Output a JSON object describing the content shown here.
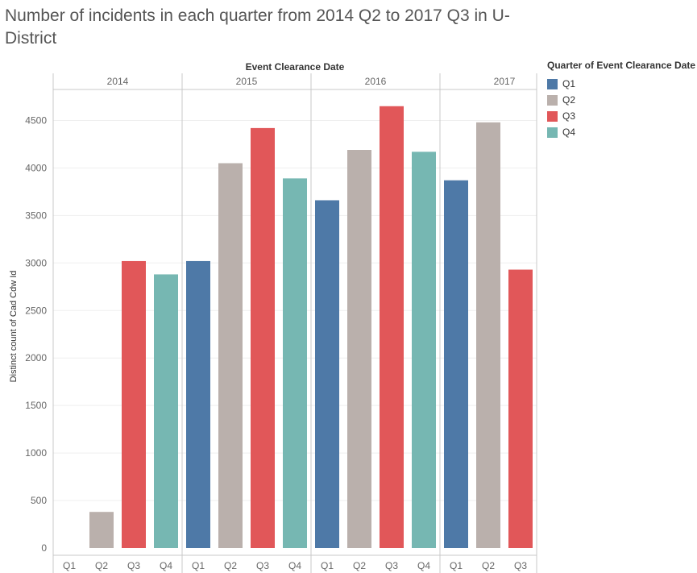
{
  "title": "Number of incidents in each quarter from 2014 Q2 to 2017 Q3 in U-District",
  "colors": {
    "Q1": "#4e79a7",
    "Q2": "#bab0ac",
    "Q3": "#e15759",
    "Q4": "#76b7b2"
  },
  "legend": {
    "title": "Quarter of Event Clearance Date",
    "items": [
      "Q1",
      "Q2",
      "Q3",
      "Q4"
    ]
  },
  "chart_data": {
    "type": "bar",
    "column_header": "Event Clearance Date",
    "ylabel": "Distinct count of Cad Cdw Id",
    "ylim": [
      0,
      4800
    ],
    "yticks": [
      0,
      500,
      1000,
      1500,
      2000,
      2500,
      3000,
      3500,
      4000,
      4500
    ],
    "grid": true,
    "legend_position": "right",
    "years": [
      {
        "year": "2014",
        "quarters": [
          {
            "q": "Q1",
            "value": null
          },
          {
            "q": "Q2",
            "value": 380
          },
          {
            "q": "Q3",
            "value": 3020
          },
          {
            "q": "Q4",
            "value": 2880
          }
        ]
      },
      {
        "year": "2015",
        "quarters": [
          {
            "q": "Q1",
            "value": 3020
          },
          {
            "q": "Q2",
            "value": 4050
          },
          {
            "q": "Q3",
            "value": 4420
          },
          {
            "q": "Q4",
            "value": 3890
          }
        ]
      },
      {
        "year": "2016",
        "quarters": [
          {
            "q": "Q1",
            "value": 3660
          },
          {
            "q": "Q2",
            "value": 4190
          },
          {
            "q": "Q3",
            "value": 4650
          },
          {
            "q": "Q4",
            "value": 4170
          }
        ]
      },
      {
        "year": "2017",
        "quarters": [
          {
            "q": "Q1",
            "value": 3870
          },
          {
            "q": "Q2",
            "value": 4480
          },
          {
            "q": "Q3",
            "value": 2930
          }
        ]
      }
    ]
  }
}
